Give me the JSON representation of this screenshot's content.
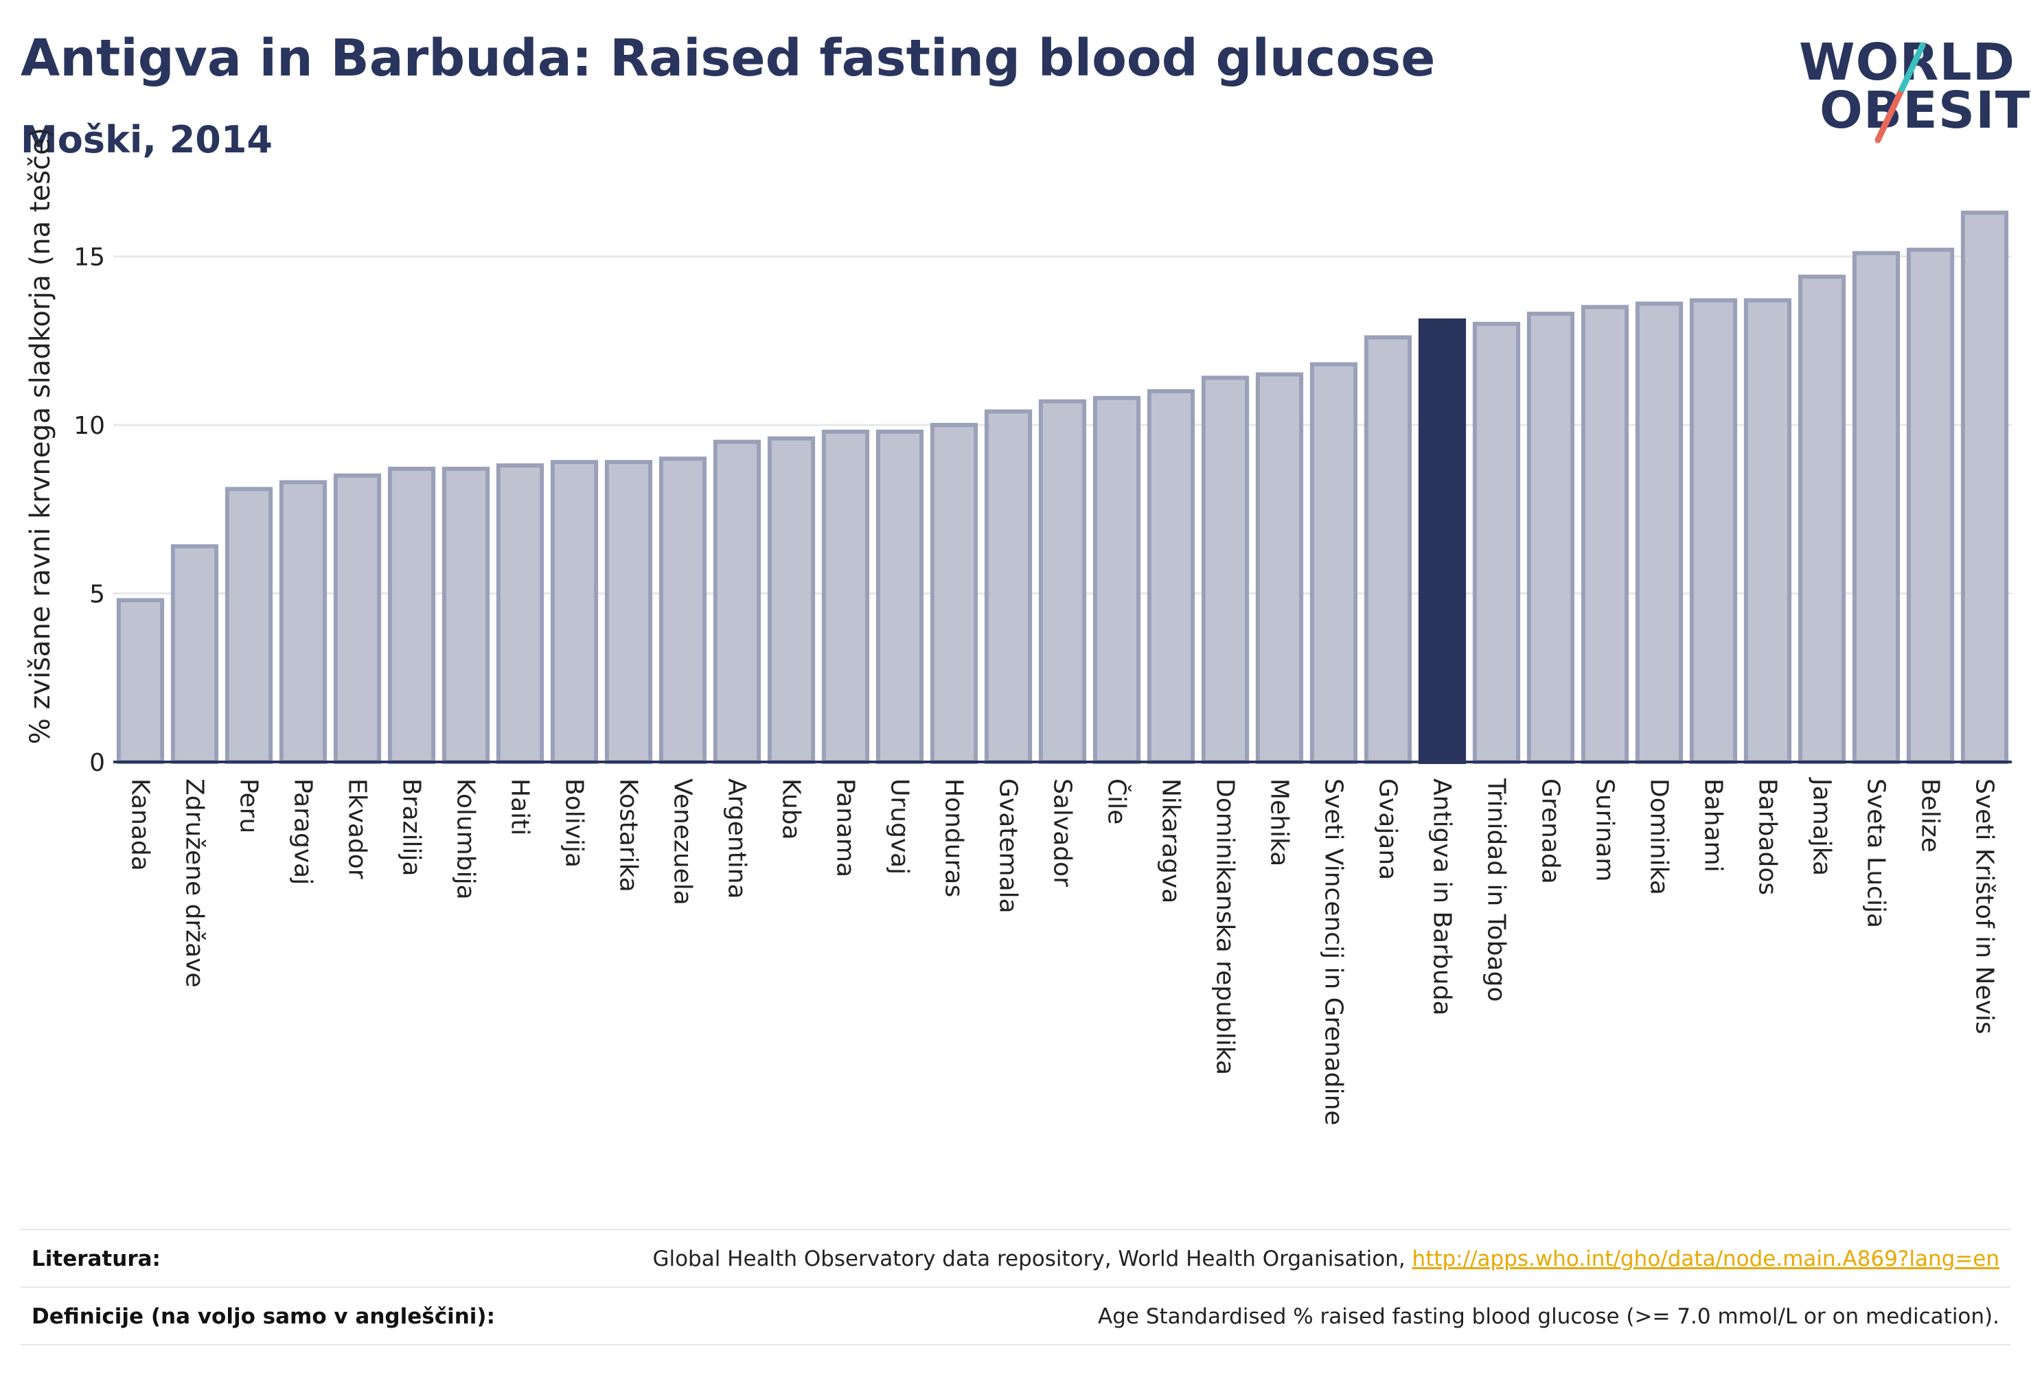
{
  "header": {
    "title": "Antigva in Barbuda: Raised fasting blood glucose",
    "subtitle": "Moški, 2014"
  },
  "logo": {
    "line1": "WORLD",
    "line2": "OBESITY",
    "accent1": "#3bbfbf",
    "accent2": "#e8685a"
  },
  "colors": {
    "bar": "#bfc3d1",
    "bar_stroke": "#9aa0b8",
    "highlight": "#2a355e",
    "axis": "#2a355e",
    "grid": "#e8e8e8"
  },
  "chart_data": {
    "type": "bar",
    "title": "",
    "ylabel": "% zvišane ravni krvnega sladkorja (na tešče)",
    "xlabel": "",
    "ylim": [
      0,
      16.5
    ],
    "yticks": [
      0,
      5,
      10,
      15
    ],
    "highlight": "Antigva in Barbuda",
    "categories": [
      "Kanada",
      "Združene države",
      "Peru",
      "Paragvaj",
      "Ekvador",
      "Brazilija",
      "Kolumbija",
      "Haiti",
      "Bolivija",
      "Kostarika",
      "Venezuela",
      "Argentina",
      "Kuba",
      "Panama",
      "Urugvaj",
      "Honduras",
      "Gvatemala",
      "Salvador",
      "Čile",
      "Nikaragva",
      "Dominikanska republika",
      "Mehika",
      "Sveti Vincencij in Grenadine",
      "Gvajana",
      "Antigva in Barbuda",
      "Trinidad in Tobago",
      "Grenada",
      "Surinam",
      "Dominika",
      "Bahami",
      "Barbados",
      "Jamajka",
      "Sveta Lucija",
      "Belize",
      "Sveti Krištof in Nevis"
    ],
    "values": [
      4.8,
      6.4,
      8.1,
      8.3,
      8.5,
      8.7,
      8.7,
      8.8,
      8.9,
      8.9,
      9.0,
      9.5,
      9.6,
      9.8,
      9.8,
      10.0,
      10.4,
      10.7,
      10.8,
      11.0,
      11.4,
      11.5,
      11.8,
      12.6,
      13.1,
      13.0,
      13.3,
      13.5,
      13.6,
      13.7,
      13.7,
      14.4,
      15.1,
      15.2,
      16.3
    ]
  },
  "footer": {
    "sources_label": "Literatura:",
    "sources_text": "Global Health Observatory data repository, World Health Organisation, ",
    "sources_link": "http://apps.who.int/gho/data/node.main.A869?lang=en",
    "definitions_label": "Definicije (na voljo samo v angleščini):",
    "definitions_text": "Age Standardised % raised fasting blood glucose (>= 7.0 mmol/L or on medication)."
  }
}
